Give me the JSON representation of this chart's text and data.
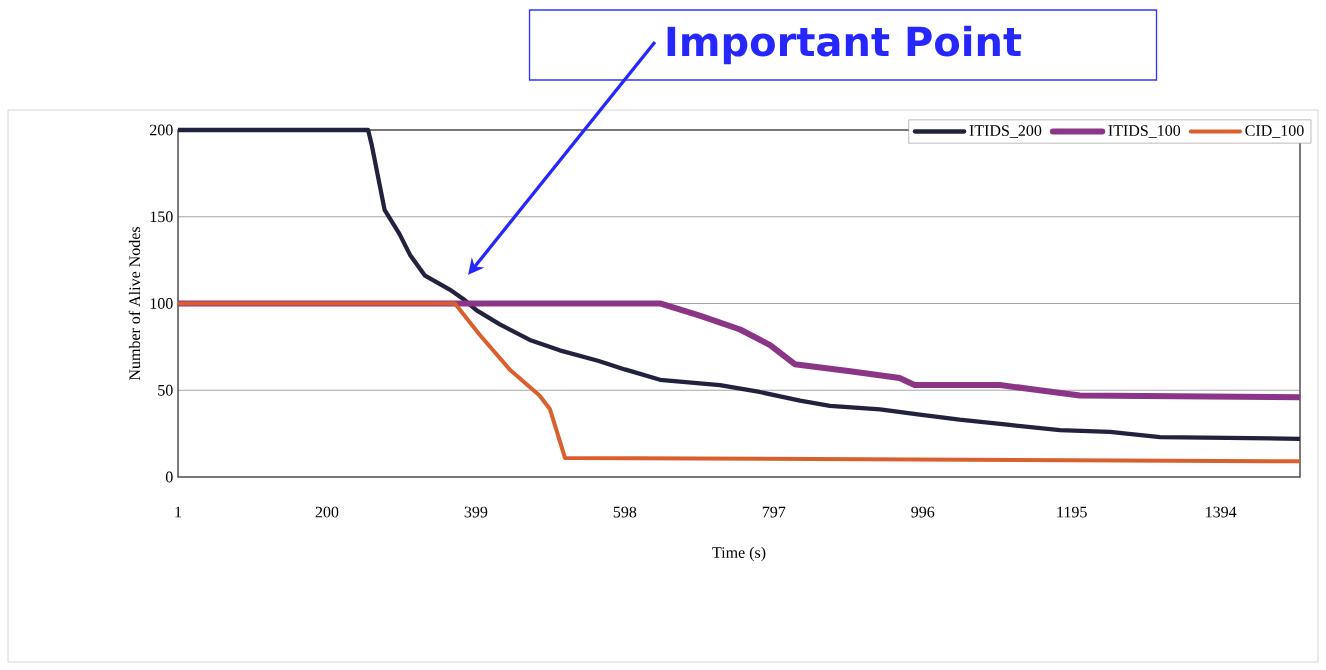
{
  "chart_data": {
    "type": "line",
    "xlabel": "Time (s)",
    "ylabel": "Number of Alive Nodes",
    "annotations": [
      "Important Point"
    ],
    "xlim": [
      1,
      1500
    ],
    "ylim": [
      0,
      200
    ],
    "xticks": [
      1,
      200,
      399,
      598,
      797,
      996,
      1195,
      1394
    ],
    "yticks": [
      0,
      50,
      100,
      150,
      200
    ],
    "grid": "y",
    "legend": "top right",
    "line_style": "solid",
    "series": [
      {
        "name": "ITIDS_200",
        "color": "#22223f",
        "x": [
          1,
          255,
          260,
          277,
          297,
          311,
          331,
          364,
          384,
          400,
          431,
          471,
          511,
          562,
          598,
          645,
          725,
          778,
          832,
          872,
          939,
          992,
          1045,
          1112,
          1179,
          1246,
          1313,
          1500
        ],
        "values": [
          200,
          200,
          191,
          154,
          140,
          128,
          116,
          108,
          102,
          96,
          88,
          79,
          73,
          67,
          62,
          56,
          53,
          49,
          44,
          41,
          39,
          36,
          33,
          30,
          27,
          26,
          23,
          22
        ]
      },
      {
        "name": "ITIDS_100",
        "color": "#8a3586",
        "x": [
          1,
          645,
          698,
          752,
          792,
          825,
          899,
          965,
          985,
          1099,
          1152,
          1206,
          1500
        ],
        "values": [
          100,
          100,
          93,
          85,
          76,
          65,
          61,
          57,
          53,
          53,
          50,
          47,
          46
        ]
      },
      {
        "name": "CID_100",
        "color": "#d9602e",
        "x": [
          1,
          371,
          404,
          444,
          484,
          498,
          518,
          1500
        ],
        "values": [
          100,
          100,
          82,
          62,
          47,
          39,
          11,
          9
        ]
      }
    ]
  }
}
